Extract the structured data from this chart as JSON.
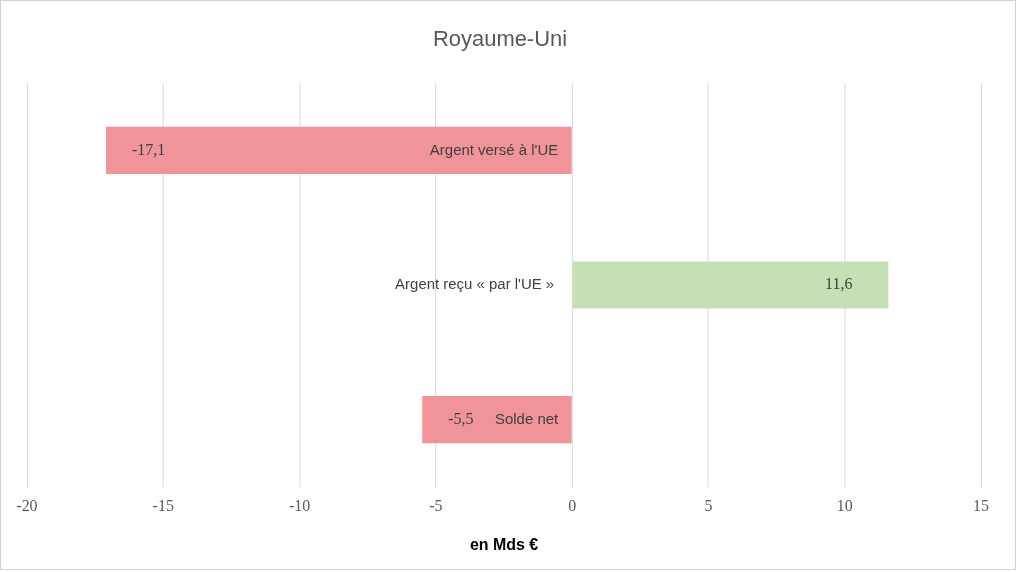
{
  "chart_data": {
    "type": "bar",
    "orientation": "horizontal",
    "title": "Royaume-Uni",
    "xlabel": "en Mds €",
    "categories": [
      "Argent versé à l'UE",
      "Argent reçu « par l'UE »",
      "Solde net"
    ],
    "values": [
      -17.1,
      11.6,
      -5.5
    ],
    "colors": [
      "#f09499",
      "#c5e0b4",
      "#f09499"
    ],
    "value_labels": [
      "-17,1",
      "11,6",
      "-5,5"
    ],
    "xlim": [
      -20,
      15
    ],
    "xticks": [
      -20,
      -15,
      -10,
      -5,
      0,
      5,
      10,
      15
    ],
    "grid": "x",
    "legend": false
  }
}
